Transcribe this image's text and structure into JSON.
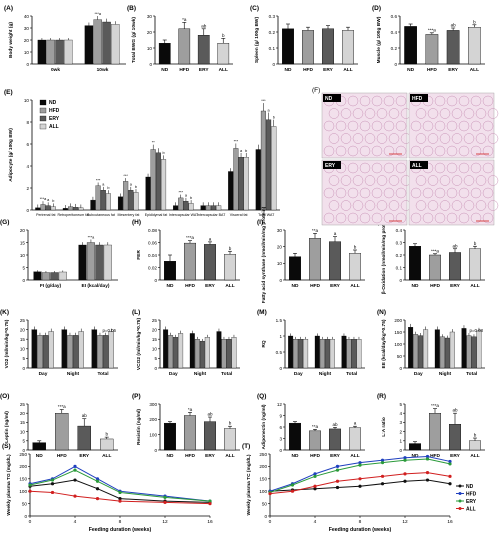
{
  "colors": {
    "ND": "#0a0a0a",
    "HFD": "#9e9e9e",
    "ERY": "#5a5a5a",
    "ALL": "#d4d4d4",
    "tg": {
      "ND": "#111111",
      "HFD": "#1f3fbf",
      "ERY": "#2a9a3a",
      "ALL": "#d11f1f"
    }
  },
  "legend_groups": [
    "ND",
    "HFD",
    "ERY",
    "ALL"
  ],
  "histology": {
    "labels": [
      "ND",
      "HFD",
      "ERY",
      "ALL"
    ],
    "tile_color": "#f2e0ec"
  },
  "chart_data": [
    {
      "id": "A",
      "letter": "(A)",
      "type": "bar",
      "ylabel": "Body weight (g)",
      "ylim": [
        0,
        40
      ],
      "yticks": [
        0,
        10,
        20,
        30,
        40
      ],
      "categories": [
        "0wk",
        "10wk"
      ],
      "series": [
        {
          "name": "ND",
          "values": [
            20,
            32
          ]
        },
        {
          "name": "HFD",
          "values": [
            20,
            37
          ]
        },
        {
          "name": "ERY",
          "values": [
            20,
            35
          ]
        },
        {
          "name": "ALL",
          "values": [
            20,
            33
          ]
        }
      ],
      "errors": [
        [
          1,
          1.5
        ],
        [
          1,
          1.5
        ],
        [
          1,
          1.5
        ],
        [
          1,
          1.5
        ]
      ],
      "sig": [
        [
          "",
          ""
        ],
        [
          "",
          "***a"
        ],
        [
          "",
          "b"
        ],
        [
          "",
          "b"
        ]
      ]
    },
    {
      "id": "B",
      "letter": "(B)",
      "type": "bar",
      "ylabel": "Total BWG (g/ 10wk)",
      "ylim": [
        0,
        30
      ],
      "yticks": [
        0,
        10,
        20,
        30
      ],
      "categories": [
        "ND",
        "HFD",
        "ERY",
        "ALL"
      ],
      "values": [
        13,
        22,
        18,
        13
      ],
      "errors": [
        2,
        4,
        4,
        3
      ],
      "sig": [
        "",
        "*a",
        "ab",
        "b"
      ]
    },
    {
      "id": "C",
      "letter": "(C)",
      "type": "bar",
      "ylabel": "Spleen (g/ 100g BW)",
      "ylim": [
        0,
        0.3
      ],
      "yticks": [
        0.0,
        0.1,
        0.2,
        0.3
      ],
      "categories": [
        "ND",
        "HFD",
        "ERY",
        "ALL"
      ],
      "values": [
        0.22,
        0.21,
        0.22,
        0.21
      ],
      "errors": [
        0.03,
        0.02,
        0.02,
        0.02
      ],
      "sig": [
        "",
        "",
        "",
        ""
      ]
    },
    {
      "id": "D",
      "letter": "(D)",
      "type": "bar",
      "ylabel": "Muscle (g/ 100g BW)",
      "ylim": [
        0,
        0.6
      ],
      "yticks": [
        0.0,
        0.2,
        0.4,
        0.6
      ],
      "categories": [
        "ND",
        "HFD",
        "ERY",
        "ALL"
      ],
      "values": [
        0.47,
        0.37,
        0.42,
        0.46
      ],
      "errors": [
        0.03,
        0.02,
        0.03,
        0.03
      ],
      "sig": [
        "",
        "***a",
        "ab",
        "b"
      ]
    },
    {
      "id": "E",
      "letter": "(E)",
      "type": "bar",
      "ylabel": "Adipocyte (g/ 100g BW)",
      "ylim": [
        0,
        10
      ],
      "yticks": [
        0,
        2,
        4,
        6,
        8,
        10
      ],
      "categories": [
        "Perirenal fat",
        "Retroperitoneum fat",
        "Subcutaneous fat",
        "Mesentery fat",
        "Epididymal fat",
        "Intercapsular WAT",
        "Intercapsular BAT",
        "Visceral fat",
        "Total WAT"
      ],
      "series": [
        {
          "name": "ND",
          "values": [
            0.2,
            0.15,
            0.9,
            1.2,
            3.0,
            0.4,
            0.4,
            3.5,
            5.5
          ]
        },
        {
          "name": "HFD",
          "values": [
            0.5,
            0.3,
            2.2,
            2.6,
            5.5,
            1.1,
            0.4,
            5.6,
            9.0
          ]
        },
        {
          "name": "ERY",
          "values": [
            0.4,
            0.25,
            1.8,
            1.8,
            5.2,
            0.8,
            0.4,
            4.8,
            8.2
          ]
        },
        {
          "name": "ALL",
          "values": [
            0.3,
            0.2,
            1.5,
            1.6,
            4.6,
            0.6,
            0.4,
            4.8,
            7.6
          ]
        }
      ],
      "sig": [
        [
          "",
          "***a",
          "a",
          "b"
        ],
        [
          "",
          "",
          "",
          ""
        ],
        [
          "",
          "***",
          "a",
          "b"
        ],
        [
          "",
          "***",
          "a",
          "b"
        ],
        [
          "",
          "**",
          "",
          "b"
        ],
        [
          "",
          "***",
          "a",
          "b"
        ],
        [
          "",
          "",
          "",
          ""
        ],
        [
          "",
          "***",
          "a",
          "b"
        ],
        [
          "",
          "***",
          "a",
          "b"
        ]
      ]
    },
    {
      "id": "G",
      "letter": "(G)",
      "type": "bar",
      "ylabel": "",
      "ylim": [
        0,
        20
      ],
      "yticks": [
        0,
        5,
        10,
        15,
        20
      ],
      "categories": [
        "FI (g/day)",
        "EI (kcal/day)"
      ],
      "series": [
        {
          "name": "ND",
          "values": [
            3.3,
            14
          ]
        },
        {
          "name": "HFD",
          "values": [
            3.0,
            15
          ]
        },
        {
          "name": "ERY",
          "values": [
            3.0,
            14
          ]
        },
        {
          "name": "ALL",
          "values": [
            3.2,
            14
          ]
        }
      ],
      "sig": [
        [
          "",
          ""
        ],
        [
          "",
          "***a"
        ],
        [
          "",
          "b"
        ],
        [
          "",
          "b"
        ]
      ]
    },
    {
      "id": "H",
      "letter": "(H)",
      "type": "bar",
      "ylabel": "FER",
      "ylim": [
        0,
        0.08
      ],
      "yticks": [
        0.0,
        0.02,
        0.04,
        0.06,
        0.08
      ],
      "categories": [
        "ND",
        "HFD",
        "ERY",
        "ALL"
      ],
      "values": [
        0.03,
        0.059,
        0.057,
        0.041
      ],
      "errors": [
        0.01,
        0.004,
        0.004,
        0.005
      ],
      "sig": [
        "",
        "***a",
        "a",
        "b"
      ]
    },
    {
      "id": "I",
      "letter": "(I)",
      "type": "bar",
      "ylabel": "Fatty acid synthase (nmol/min/mg protein)",
      "ylim": [
        0,
        30
      ],
      "yticks": [
        0,
        10,
        20,
        30
      ],
      "categories": [
        "ND",
        "HFD",
        "ERY",
        "ALL"
      ],
      "values": [
        14,
        25,
        23,
        16
      ],
      "errors": [
        2,
        3,
        3,
        2
      ],
      "sig": [
        "",
        "**a",
        "a",
        "b"
      ]
    },
    {
      "id": "J",
      "letter": "(J)",
      "type": "bar",
      "ylabel": "β-Oxidation (nmol/min/mg protein)",
      "ylim": [
        0,
        0.4
      ],
      "yticks": [
        0.0,
        0.1,
        0.2,
        0.3,
        0.4
      ],
      "categories": [
        "ND",
        "HFD",
        "ERY",
        "ALL"
      ],
      "values": [
        0.27,
        0.2,
        0.22,
        0.25
      ],
      "errors": [
        0.02,
        0.01,
        0.03,
        0.02
      ],
      "sig": [
        "",
        "***a",
        "ab",
        "b"
      ]
    },
    {
      "id": "K",
      "letter": "(K)",
      "type": "bar",
      "ylabel": "VO2 (ml/min/kg^0.75)",
      "ylim": [
        0,
        25
      ],
      "yticks": [
        0,
        5,
        10,
        15,
        20,
        25
      ],
      "categories": [
        "Day",
        "Night",
        "Total"
      ],
      "series": [
        {
          "name": "ND",
          "values": [
            20,
            20,
            20
          ]
        },
        {
          "name": "HFD",
          "values": [
            17,
            17,
            17
          ]
        },
        {
          "name": "ERY",
          "values": [
            17,
            17,
            17
          ]
        },
        {
          "name": "ALL",
          "values": [
            19,
            19,
            19
          ]
        }
      ],
      "sig": [
        [
          "",
          "",
          "",
          ""
        ],
        [
          "",
          "",
          "",
          ""
        ],
        [
          "",
          "",
          "",
          ""
        ]
      ],
      "note": "p=0.06"
    },
    {
      "id": "L",
      "letter": "(L)",
      "type": "bar",
      "ylabel": "VCO2 (ml/min/kg^0.75)",
      "ylim": [
        0,
        25
      ],
      "yticks": [
        0,
        5,
        10,
        15,
        20,
        25
      ],
      "categories": [
        "Day",
        "Night",
        "Total"
      ],
      "series": [
        {
          "name": "ND",
          "values": [
            20,
            18,
            19
          ]
        },
        {
          "name": "HFD",
          "values": [
            17,
            15,
            15
          ]
        },
        {
          "name": "ERY",
          "values": [
            16,
            14,
            15
          ]
        },
        {
          "name": "ALL",
          "values": [
            18,
            16,
            16
          ]
        }
      ],
      "sig": [
        [
          "",
          "",
          "",
          ""
        ],
        [
          "",
          "",
          "",
          ""
        ],
        [
          "",
          "",
          "",
          ""
        ]
      ]
    },
    {
      "id": "M",
      "letter": "(M)",
      "type": "bar",
      "ylabel": "RQ",
      "ylim": [
        0,
        1.5
      ],
      "yticks": [
        0.0,
        0.5,
        1.0,
        1.5
      ],
      "categories": [
        "Day",
        "Night",
        "Total"
      ],
      "series": [
        {
          "name": "ND",
          "values": [
            1.0,
            1.0,
            1.0
          ]
        },
        {
          "name": "HFD",
          "values": [
            0.9,
            0.9,
            0.9
          ]
        },
        {
          "name": "ERY",
          "values": [
            0.9,
            0.9,
            0.9
          ]
        },
        {
          "name": "ALL",
          "values": [
            0.9,
            0.9,
            0.9
          ]
        }
      ],
      "sig": [
        [
          "",
          "",
          "",
          ""
        ],
        [
          "",
          "",
          "",
          ""
        ],
        [
          "",
          "",
          "",
          ""
        ]
      ]
    },
    {
      "id": "N",
      "letter": "(N)",
      "type": "bar",
      "ylabel": "EE (kcal/day/kg^0.75)",
      "ylim": [
        0,
        200
      ],
      "yticks": [
        0,
        50,
        100,
        150,
        200
      ],
      "categories": [
        "Day",
        "Night",
        "Total"
      ],
      "series": [
        {
          "name": "ND",
          "values": [
            170,
            160,
            165
          ]
        },
        {
          "name": "HFD",
          "values": [
            140,
            130,
            135
          ]
        },
        {
          "name": "ERY",
          "values": [
            135,
            125,
            130
          ]
        },
        {
          "name": "ALL",
          "values": [
            160,
            150,
            155
          ]
        }
      ],
      "sig": [
        [
          "",
          "",
          "",
          ""
        ],
        [
          "",
          "",
          "",
          ""
        ],
        [
          "",
          "",
          "",
          ""
        ]
      ],
      "note": "p=0.08"
    },
    {
      "id": "O",
      "letter": "(O)",
      "type": "bar",
      "ylabel": "Leptin (ng/ml)",
      "ylim": [
        0,
        25
      ],
      "yticks": [
        0,
        5,
        10,
        15,
        20,
        25
      ],
      "categories": [
        "ND",
        "HFD",
        "ERY",
        "ALL"
      ],
      "values": [
        4,
        20,
        13,
        6
      ],
      "errors": [
        1,
        2,
        4,
        1
      ],
      "sig": [
        "",
        "***a",
        "ab",
        "b"
      ]
    },
    {
      "id": "P",
      "letter": "(P)",
      "type": "bar",
      "ylabel": "Resistin (ng/ml)",
      "ylim": [
        0,
        300
      ],
      "yticks": [
        0,
        100,
        200,
        300
      ],
      "categories": [
        "ND",
        "HFD",
        "ERY",
        "ALL"
      ],
      "values": [
        175,
        225,
        185,
        140
      ],
      "errors": [
        10,
        20,
        30,
        15
      ],
      "sig": [
        "",
        "*a",
        "ab",
        "b"
      ]
    },
    {
      "id": "Q",
      "letter": "(Q)",
      "type": "bar",
      "ylabel": "Adiponectin (ng/ml)",
      "ylim": [
        0,
        12
      ],
      "yticks": [
        0,
        3,
        6,
        9,
        12
      ],
      "categories": [
        "ND",
        "HFD",
        "ERY",
        "ALL"
      ],
      "values": [
        7,
        5,
        5.5,
        5.8
      ],
      "errors": [
        0.4,
        0.4,
        0.4,
        0.4
      ],
      "sig": [
        "",
        "**a",
        "ab",
        "a"
      ]
    },
    {
      "id": "R",
      "letter": "(R)",
      "type": "bar",
      "ylabel": "L:A ratio",
      "ylim": [
        0,
        5
      ],
      "yticks": [
        0,
        1,
        2,
        3,
        4,
        5
      ],
      "categories": [
        "ND",
        "HFD",
        "ERY",
        "ALL"
      ],
      "values": [
        0.7,
        4,
        2.8,
        1
      ],
      "errors": [
        0.2,
        0.5,
        1.2,
        0.3
      ],
      "sig": [
        "",
        "***a",
        "ab",
        "b"
      ]
    },
    {
      "id": "S",
      "letter": "(S)",
      "type": "line",
      "ylabel": "Weekly plasma TG (mg/dL)",
      "xlabel": "Feeding duration  (weeks)",
      "ylim": [
        0,
        250
      ],
      "yticks": [
        0,
        50,
        100,
        150,
        200,
        250
      ],
      "xlim": [
        0,
        16
      ],
      "xticks": [
        0,
        4,
        8,
        12,
        16
      ],
      "x": [
        0,
        2,
        4,
        6,
        8,
        12,
        16
      ],
      "series": [
        {
          "name": "ND",
          "values": [
            120,
            130,
            145,
            110,
            70,
            60,
            55
          ]
        },
        {
          "name": "HFD",
          "values": [
            130,
            150,
            200,
            150,
            100,
            80,
            60
          ]
        },
        {
          "name": "ERY",
          "values": [
            125,
            145,
            185,
            140,
            95,
            75,
            60
          ]
        },
        {
          "name": "ALL",
          "values": [
            100,
            95,
            80,
            70,
            60,
            55,
            50
          ]
        }
      ]
    },
    {
      "id": "T",
      "letter": "(T)",
      "type": "line",
      "ylabel": "Weekly plasma TC (mg/dL)",
      "xlabel": "Feeding duration  (weeks)",
      "ylim": [
        0,
        250
      ],
      "yticks": [
        0,
        50,
        100,
        150,
        200,
        250
      ],
      "xlim": [
        0,
        16
      ],
      "xticks": [
        0,
        4,
        8,
        12,
        16
      ],
      "x": [
        0,
        2,
        4,
        6,
        8,
        10,
        12,
        14,
        16
      ],
      "series": [
        {
          "name": "ND",
          "values": [
            100,
            105,
            110,
            115,
            120,
            130,
            140,
            145,
            130
          ]
        },
        {
          "name": "HFD",
          "values": [
            100,
            130,
            170,
            200,
            215,
            225,
            235,
            240,
            220
          ]
        },
        {
          "name": "ERY",
          "values": [
            95,
            125,
            160,
            185,
            205,
            215,
            225,
            230,
            210
          ]
        },
        {
          "name": "ALL",
          "values": [
            90,
            100,
            120,
            140,
            150,
            160,
            170,
            175,
            160
          ]
        }
      ],
      "legend": [
        "ND",
        "HFD",
        "ERY",
        "ALL"
      ]
    }
  ]
}
